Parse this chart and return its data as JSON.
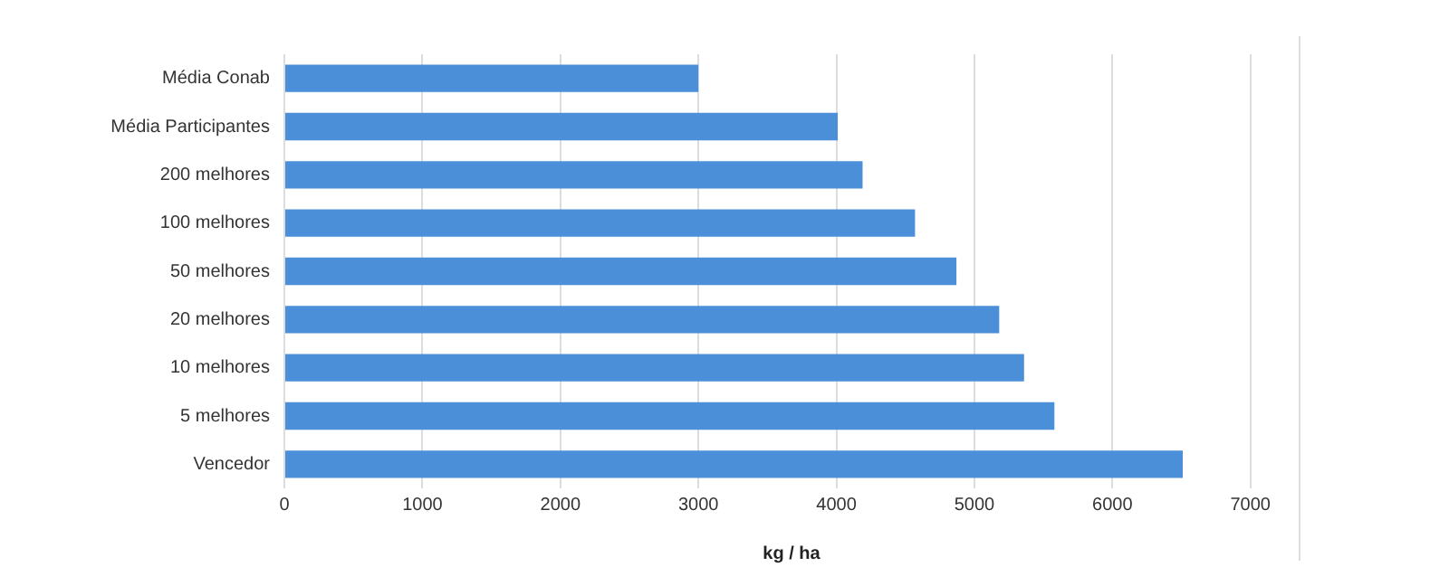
{
  "chart_data": {
    "type": "bar",
    "orientation": "horizontal",
    "xlabel": "kg / ha",
    "categories": [
      "Média Conab",
      "Média Participantes",
      "200 melhores",
      "100 melhores",
      "50 melhores",
      "20 melhores",
      "10 melhores",
      "5 melhores",
      "Vencedor"
    ],
    "values": [
      3000,
      4010,
      4190,
      4570,
      4870,
      5180,
      5360,
      5580,
      6510
    ],
    "color": "#4a8fd8",
    "xlim": [
      0,
      7350
    ],
    "xticks": [
      0,
      1000,
      2000,
      3000,
      4000,
      5000,
      6000,
      7000
    ],
    "grid": "x",
    "legend": false
  }
}
